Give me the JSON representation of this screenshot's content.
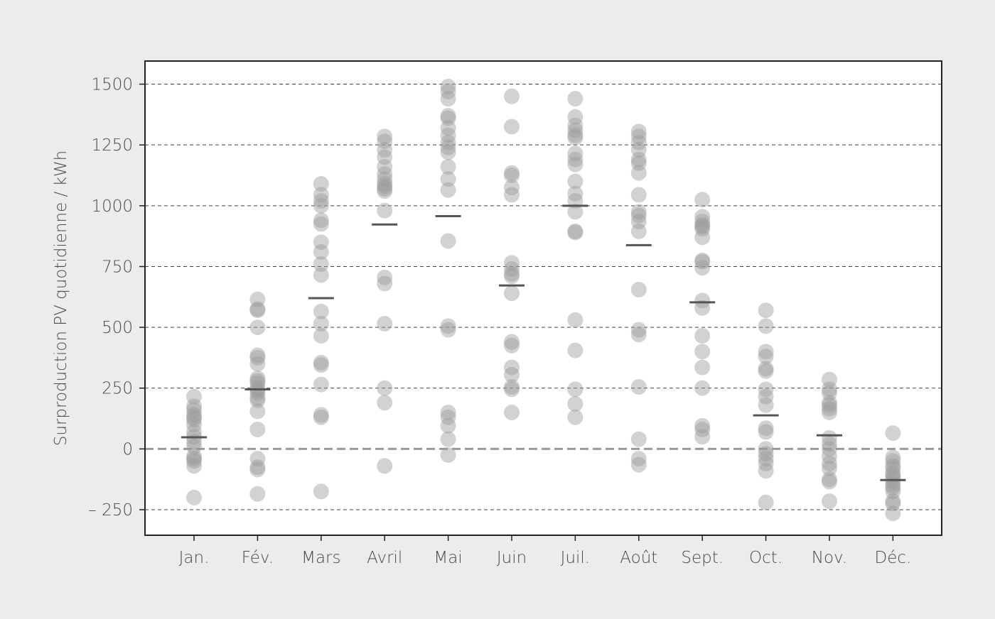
{
  "chart_data": {
    "type": "scatter",
    "ylabel": "Surproduction PV quotidienne / kWh",
    "ylim": [
      -355,
      1595
    ],
    "yticks": [
      -250,
      0,
      250,
      500,
      750,
      1000,
      1250,
      1500
    ],
    "ytick_labels": [
      "– 250",
      "0",
      "250",
      "500",
      "750",
      "1000",
      "1250",
      "1500"
    ],
    "grid": true,
    "categories": [
      "Jan.",
      "Fév.",
      "Mars",
      "Avril",
      "Mai",
      "Juin",
      "Juil.",
      "Août",
      "Sept.",
      "Oct.",
      "Nov.",
      "Déc."
    ],
    "points": [
      [
        215,
        175,
        160,
        140,
        130,
        120,
        100,
        70,
        50,
        30,
        10,
        -30,
        -40,
        -50,
        -70,
        -200
      ],
      [
        615,
        575,
        570,
        500,
        385,
        375,
        350,
        290,
        280,
        270,
        250,
        240,
        230,
        210,
        200,
        155,
        80,
        -40,
        -75,
        -85,
        -185
      ],
      [
        1090,
        1045,
        1020,
        1000,
        940,
        925,
        850,
        810,
        760,
        715,
        565,
        515,
        465,
        355,
        345,
        265,
        140,
        130,
        -175
      ],
      [
        1285,
        1265,
        1230,
        1200,
        1160,
        1130,
        1110,
        1090,
        1080,
        1070,
        1060,
        980,
        705,
        680,
        515,
        250,
        190,
        -70
      ],
      [
        1490,
        1470,
        1440,
        1370,
        1360,
        1320,
        1290,
        1260,
        1240,
        1220,
        1160,
        1110,
        1065,
        855,
        505,
        490,
        150,
        130,
        95,
        40,
        -25
      ],
      [
        1450,
        1325,
        1135,
        1125,
        1075,
        1045,
        765,
        740,
        720,
        710,
        640,
        440,
        425,
        335,
        305,
        255,
        245,
        150
      ],
      [
        1440,
        1365,
        1330,
        1310,
        1290,
        1280,
        1215,
        1190,
        1170,
        1100,
        1050,
        1020,
        975,
        895,
        890,
        530,
        405,
        245,
        185,
        130
      ],
      [
        1305,
        1285,
        1260,
        1230,
        1190,
        1175,
        1135,
        1045,
        975,
        960,
        935,
        895,
        655,
        490,
        470,
        255,
        40,
        -40,
        -65
      ],
      [
        1025,
        955,
        935,
        920,
        915,
        905,
        870,
        775,
        770,
        745,
        610,
        580,
        465,
        400,
        335,
        250,
        95,
        80,
        50
      ],
      [
        570,
        505,
        400,
        380,
        330,
        320,
        245,
        215,
        180,
        85,
        70,
        0,
        -20,
        -40,
        -60,
        -90,
        -220
      ],
      [
        285,
        245,
        230,
        190,
        180,
        165,
        150,
        45,
        20,
        0,
        -30,
        -60,
        -80,
        -125,
        -135,
        -215
      ],
      [
        65,
        -35,
        -50,
        -70,
        -80,
        -100,
        -110,
        -120,
        -135,
        -150,
        -160,
        -175,
        -215,
        -225,
        -265
      ]
    ],
    "medians": [
      48,
      245,
      620,
      923,
      957,
      672,
      1000,
      838,
      603,
      138,
      56,
      -128
    ],
    "point_color": "#9c9c9c",
    "median_color": "#555555",
    "zero_line_color": "#999999"
  }
}
